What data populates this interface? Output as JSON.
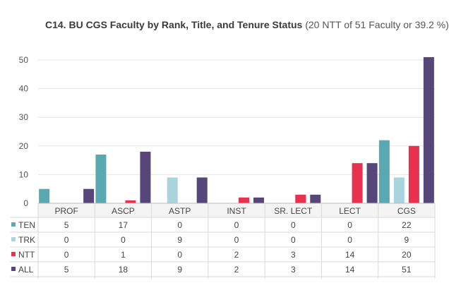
{
  "chart_data": {
    "type": "bar",
    "title": "C14. BU CGS Faculty by Rank, Title, and Tenure Status",
    "subtitle": "(20 NTT of 51 Faculty or 39.2 %)",
    "categories": [
      "PROF",
      "ASCP",
      "ASTP",
      "INST",
      "SR. LECT",
      "LECT",
      "CGS"
    ],
    "series": [
      {
        "name": "TEN",
        "color": "#5aa8b2",
        "values": [
          5,
          17,
          0,
          0,
          0,
          0,
          22
        ]
      },
      {
        "name": "TRK",
        "color": "#a9d4de",
        "values": [
          0,
          0,
          9,
          0,
          0,
          0,
          9
        ]
      },
      {
        "name": "NTT",
        "color": "#e8304f",
        "values": [
          0,
          1,
          0,
          2,
          3,
          14,
          20
        ]
      },
      {
        "name": "ALL",
        "color": "#56467a",
        "values": [
          5,
          18,
          9,
          2,
          3,
          14,
          51
        ]
      }
    ],
    "yticks": [
      0,
      10,
      20,
      30,
      40,
      50
    ],
    "ylim": [
      0,
      52
    ],
    "grid": true,
    "legend": "data-table-below"
  }
}
